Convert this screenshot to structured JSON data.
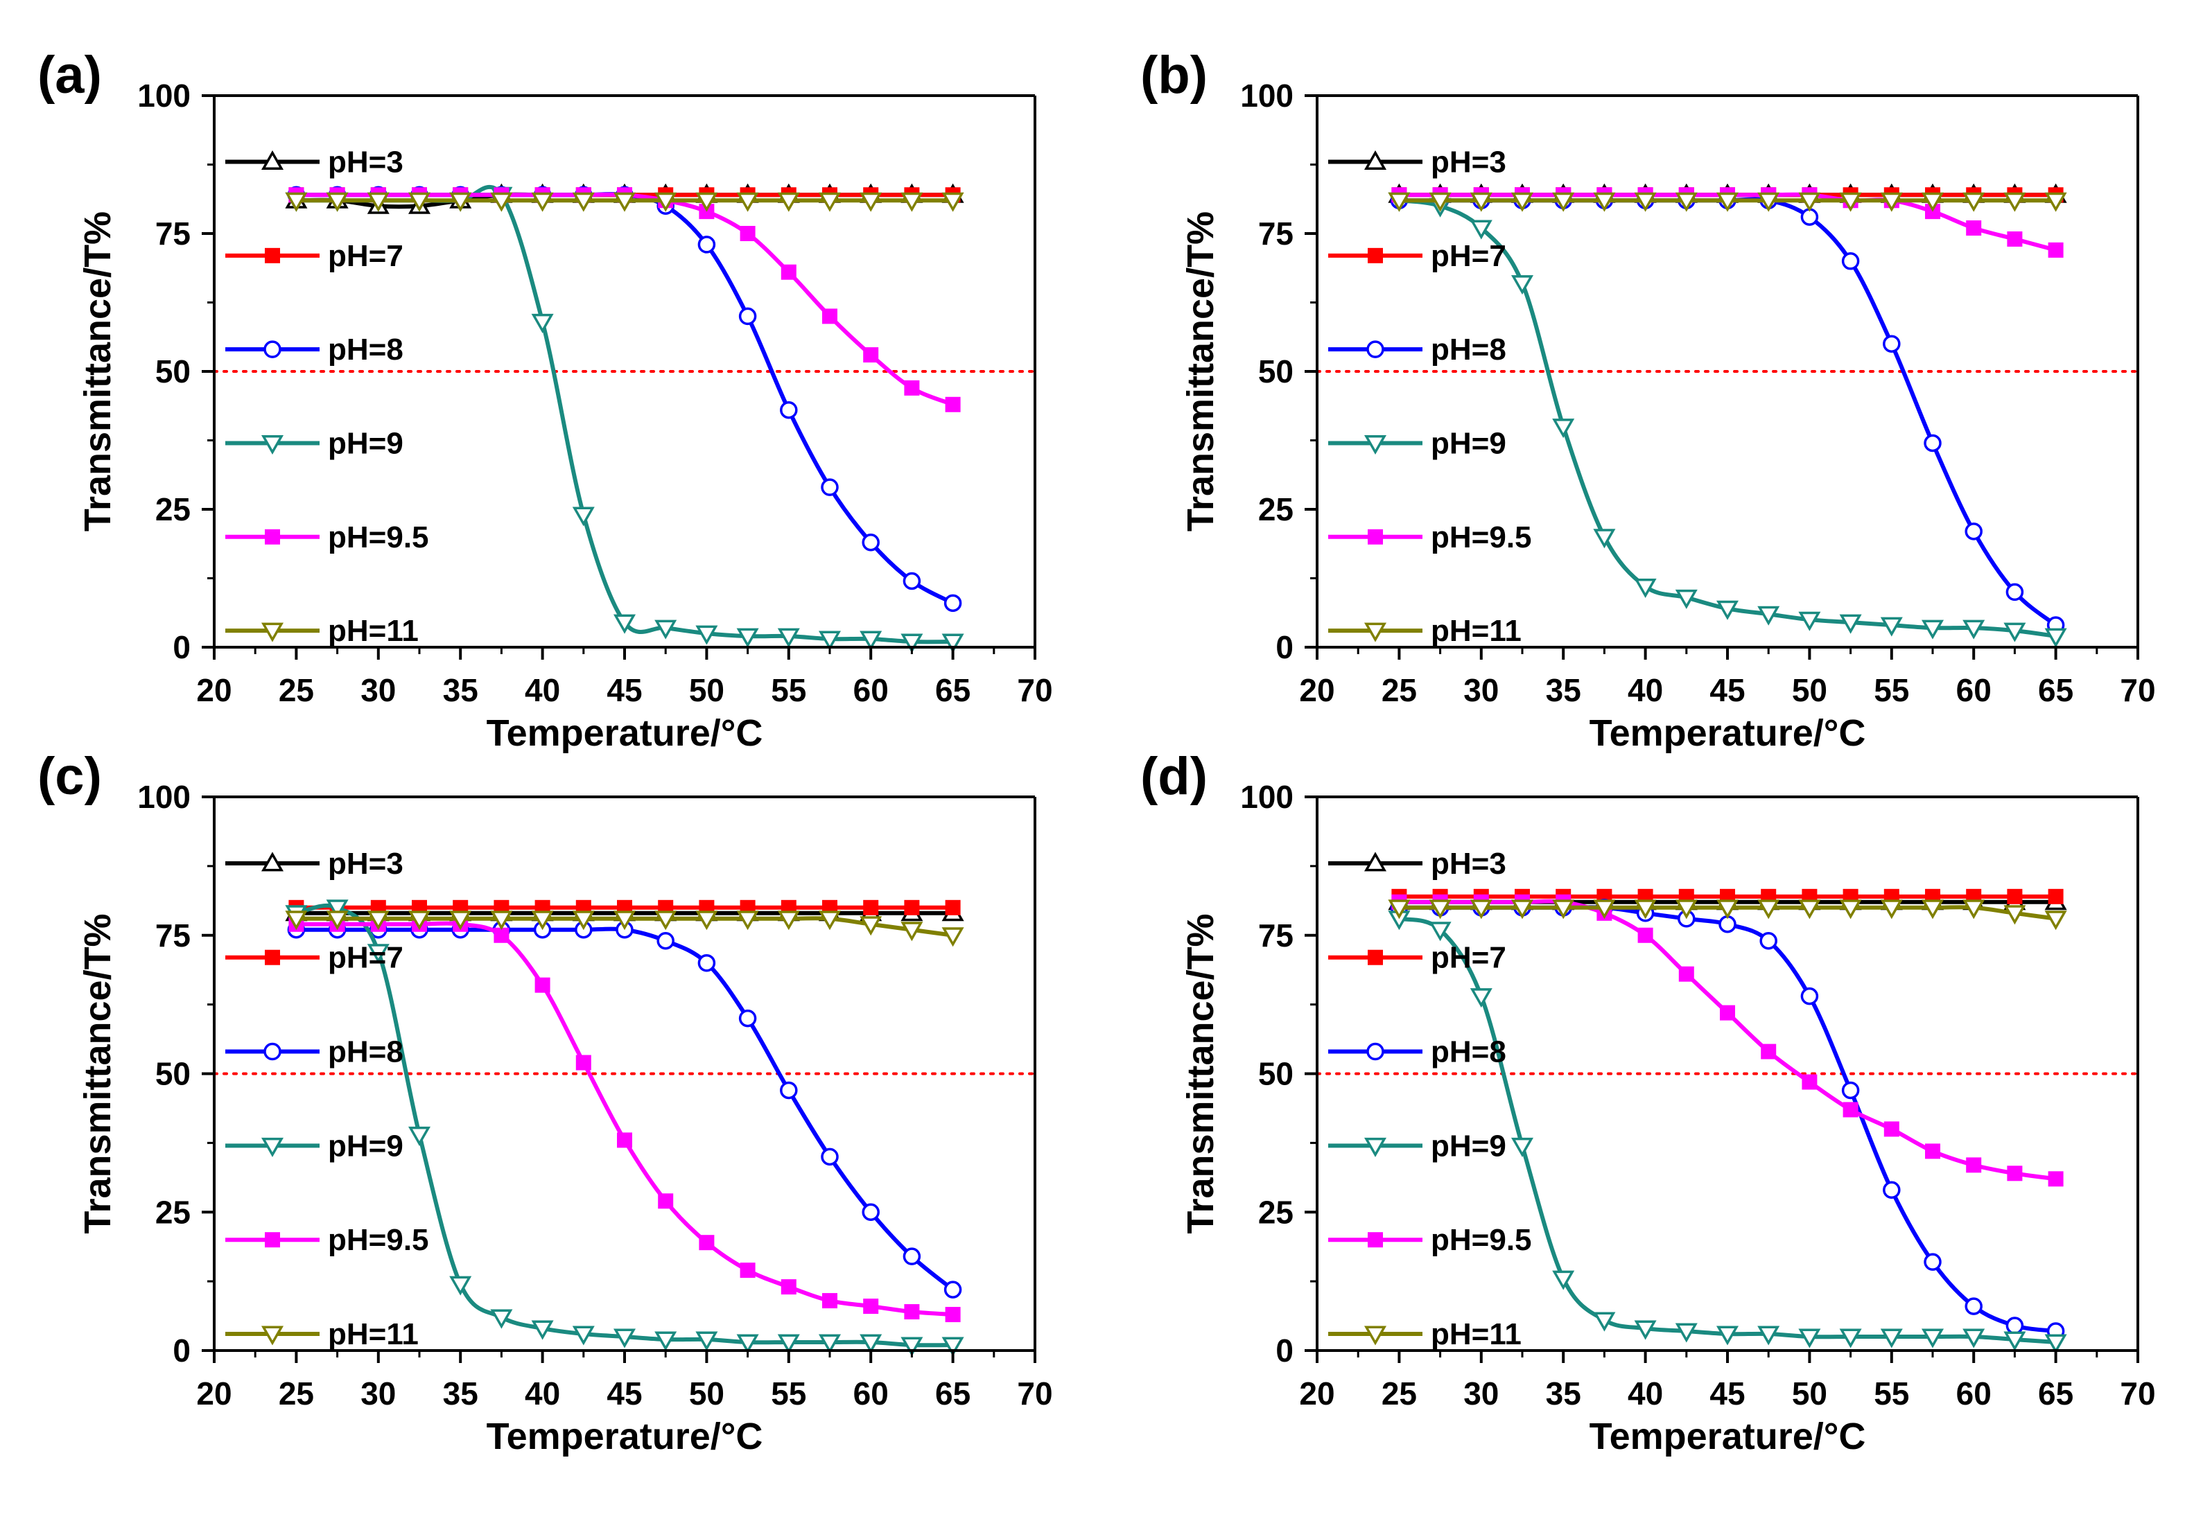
{
  "chart_data": [
    {
      "type": "line",
      "panel_label": "(a)",
      "xlabel": "Temperature/°C",
      "ylabel": "Transmittance/T%",
      "xlim": [
        20,
        70
      ],
      "ylim": [
        0,
        100
      ],
      "xticks": [
        20,
        25,
        30,
        35,
        40,
        45,
        50,
        55,
        60,
        65,
        70
      ],
      "yticks": [
        0,
        25,
        50,
        75,
        100
      ],
      "reference_line": 50,
      "legend_position": "left-lower",
      "grid": false,
      "x": [
        25,
        27.5,
        30,
        32.5,
        35,
        37.5,
        40,
        42.5,
        45,
        47.5,
        50,
        52.5,
        55,
        57.5,
        60,
        62.5,
        65
      ],
      "series": [
        {
          "name": "pH=3",
          "color": "#000000",
          "marker": "triangle-up-open",
          "values": [
            81,
            81,
            80,
            80,
            81,
            82,
            82,
            82,
            82,
            82,
            82,
            82,
            82,
            82,
            82,
            82,
            82
          ]
        },
        {
          "name": "pH=7",
          "color": "#ff0000",
          "marker": "square-filled",
          "values": [
            82,
            82,
            82,
            82,
            82,
            82,
            82,
            82,
            82,
            82,
            82,
            82,
            82,
            82,
            82,
            82,
            82
          ]
        },
        {
          "name": "pH=8",
          "color": "#0000ff",
          "marker": "circle-open",
          "values": [
            82,
            82,
            82,
            82,
            82,
            82,
            82,
            82,
            82,
            80,
            73,
            60,
            43,
            29,
            19,
            12,
            8
          ]
        },
        {
          "name": "pH=9",
          "color": "#1a8a80",
          "marker": "triangle-down-open",
          "values": [
            81,
            81,
            81,
            81,
            81,
            82,
            59,
            24,
            4.5,
            3.5,
            2.5,
            2,
            2,
            1.5,
            1.5,
            1,
            1
          ]
        },
        {
          "name": "pH=9.5",
          "color": "#ff00ff",
          "marker": "square-filled",
          "values": [
            82,
            82,
            82,
            82,
            82,
            82,
            82,
            82,
            82,
            81,
            79,
            75,
            68,
            60,
            53,
            47,
            44
          ]
        },
        {
          "name": "pH=11",
          "color": "#808000",
          "marker": "triangle-down-open",
          "values": [
            81,
            81,
            81,
            81,
            81,
            81,
            81,
            81,
            81,
            81,
            81,
            81,
            81,
            81,
            81,
            81,
            81
          ]
        }
      ]
    },
    {
      "type": "line",
      "panel_label": "(b)",
      "xlabel": "Temperature/°C",
      "ylabel": "Transmittance/T%",
      "xlim": [
        20,
        70
      ],
      "ylim": [
        0,
        100
      ],
      "xticks": [
        20,
        25,
        30,
        35,
        40,
        45,
        50,
        55,
        60,
        65,
        70
      ],
      "yticks": [
        0,
        25,
        50,
        75,
        100
      ],
      "reference_line": 50,
      "legend_position": "left-lower",
      "grid": false,
      "x": [
        25,
        27.5,
        30,
        32.5,
        35,
        37.5,
        40,
        42.5,
        45,
        47.5,
        50,
        52.5,
        55,
        57.5,
        60,
        62.5,
        65
      ],
      "series": [
        {
          "name": "pH=3",
          "color": "#000000",
          "marker": "triangle-up-open",
          "values": [
            82,
            82,
            82,
            82,
            82,
            82,
            82,
            82,
            82,
            82,
            82,
            82,
            82,
            82,
            82,
            82,
            82
          ]
        },
        {
          "name": "pH=7",
          "color": "#ff0000",
          "marker": "square-filled",
          "values": [
            82,
            82,
            82,
            82,
            82,
            82,
            82,
            82,
            82,
            82,
            82,
            82,
            82,
            82,
            82,
            82,
            82
          ]
        },
        {
          "name": "pH=8",
          "color": "#0000ff",
          "marker": "circle-open",
          "values": [
            81,
            81,
            81,
            81,
            81,
            81,
            81,
            81,
            81,
            81,
            78,
            70,
            55,
            37,
            21,
            10,
            4
          ]
        },
        {
          "name": "pH=9",
          "color": "#1a8a80",
          "marker": "triangle-down-open",
          "values": [
            81,
            80,
            76,
            66,
            40,
            20,
            11,
            9,
            7,
            6,
            5,
            4.5,
            4,
            3.5,
            3.5,
            3,
            2
          ]
        },
        {
          "name": "pH=9.5",
          "color": "#ff00ff",
          "marker": "square-filled",
          "values": [
            82,
            82,
            82,
            82,
            82,
            82,
            82,
            82,
            82,
            82,
            82,
            81,
            81,
            79,
            76,
            74,
            72
          ]
        },
        {
          "name": "pH=11",
          "color": "#808000",
          "marker": "triangle-down-open",
          "values": [
            81,
            81,
            81,
            81,
            81,
            81,
            81,
            81,
            81,
            81,
            81,
            81,
            81,
            81,
            81,
            81,
            81
          ]
        }
      ]
    },
    {
      "type": "line",
      "panel_label": "(c)",
      "xlabel": "Temperature/°C",
      "ylabel": "Transmittance/T%",
      "xlim": [
        20,
        70
      ],
      "ylim": [
        0,
        100
      ],
      "xticks": [
        20,
        25,
        30,
        35,
        40,
        45,
        50,
        55,
        60,
        65,
        70
      ],
      "yticks": [
        0,
        25,
        50,
        75,
        100
      ],
      "reference_line": 50,
      "legend_position": "left-lower",
      "grid": false,
      "x": [
        25,
        27.5,
        30,
        32.5,
        35,
        37.5,
        40,
        42.5,
        45,
        47.5,
        50,
        52.5,
        55,
        57.5,
        60,
        62.5,
        65
      ],
      "series": [
        {
          "name": "pH=3",
          "color": "#000000",
          "marker": "triangle-up-open",
          "values": [
            79,
            79,
            79,
            79,
            79,
            79,
            79,
            79,
            79,
            79,
            79,
            79,
            79,
            79,
            79,
            79,
            79
          ]
        },
        {
          "name": "pH=7",
          "color": "#ff0000",
          "marker": "square-filled",
          "values": [
            80,
            80,
            80,
            80,
            80,
            80,
            80,
            80,
            80,
            80,
            80,
            80,
            80,
            80,
            80,
            80,
            80
          ]
        },
        {
          "name": "pH=8",
          "color": "#0000ff",
          "marker": "circle-open",
          "values": [
            76,
            76,
            76,
            76,
            76,
            76,
            76,
            76,
            76,
            74,
            70,
            60,
            47,
            35,
            25,
            17,
            11
          ]
        },
        {
          "name": "pH=9",
          "color": "#1a8a80",
          "marker": "triangle-down-open",
          "values": [
            79,
            80,
            72,
            39,
            12,
            6,
            4,
            3,
            2.5,
            2,
            2,
            1.5,
            1.5,
            1.5,
            1.5,
            1,
            1
          ]
        },
        {
          "name": "pH=9.5",
          "color": "#ff00ff",
          "marker": "square-filled",
          "values": [
            77,
            77,
            77,
            77,
            77,
            75,
            66,
            52,
            38,
            27,
            19.5,
            14.5,
            11.5,
            9,
            8,
            7,
            6.5
          ]
        },
        {
          "name": "pH=11",
          "color": "#808000",
          "marker": "triangle-down-open",
          "values": [
            78,
            78,
            78,
            78,
            78,
            78,
            78,
            78,
            78,
            78,
            78,
            78,
            78,
            78,
            77,
            76,
            75
          ]
        }
      ]
    },
    {
      "type": "line",
      "panel_label": "(d)",
      "xlabel": "Temperature/°C",
      "ylabel": "Transmittance/T%",
      "xlim": [
        20,
        70
      ],
      "ylim": [
        0,
        100
      ],
      "xticks": [
        20,
        25,
        30,
        35,
        40,
        45,
        50,
        55,
        60,
        65,
        70
      ],
      "yticks": [
        0,
        25,
        50,
        75,
        100
      ],
      "reference_line": 50,
      "legend_position": "left-lower",
      "grid": false,
      "x": [
        25,
        27.5,
        30,
        32.5,
        35,
        37.5,
        40,
        42.5,
        45,
        47.5,
        50,
        52.5,
        55,
        57.5,
        60,
        62.5,
        65
      ],
      "series": [
        {
          "name": "pH=3",
          "color": "#000000",
          "marker": "triangle-up-open",
          "values": [
            81,
            81,
            81,
            81,
            81,
            81,
            81,
            81,
            81,
            81,
            81,
            81,
            81,
            81,
            81,
            81,
            81
          ]
        },
        {
          "name": "pH=7",
          "color": "#ff0000",
          "marker": "square-filled",
          "values": [
            82,
            82,
            82,
            82,
            82,
            82,
            82,
            82,
            82,
            82,
            82,
            82,
            82,
            82,
            82,
            82,
            82
          ]
        },
        {
          "name": "pH=8",
          "color": "#0000ff",
          "marker": "circle-open",
          "values": [
            80,
            80,
            80,
            80,
            80,
            80,
            79,
            78,
            77,
            74,
            64,
            47,
            29,
            16,
            8,
            4.5,
            3.5
          ]
        },
        {
          "name": "pH=9",
          "color": "#1a8a80",
          "marker": "triangle-down-open",
          "values": [
            78,
            76,
            64,
            37,
            13,
            5.5,
            4,
            3.5,
            3,
            3,
            2.5,
            2.5,
            2.5,
            2.5,
            2.5,
            2,
            1.5
          ]
        },
        {
          "name": "pH=9.5",
          "color": "#ff00ff",
          "marker": "square-filled",
          "values": [
            81,
            81,
            81,
            81,
            81,
            79,
            75,
            68,
            61,
            54,
            48.5,
            43.5,
            40,
            36,
            33.5,
            32,
            31
          ]
        },
        {
          "name": "pH=11",
          "color": "#808000",
          "marker": "triangle-down-open",
          "values": [
            80,
            80,
            80,
            80,
            80,
            80,
            80,
            80,
            80,
            80,
            80,
            80,
            80,
            80,
            80,
            79,
            78
          ]
        }
      ]
    }
  ]
}
